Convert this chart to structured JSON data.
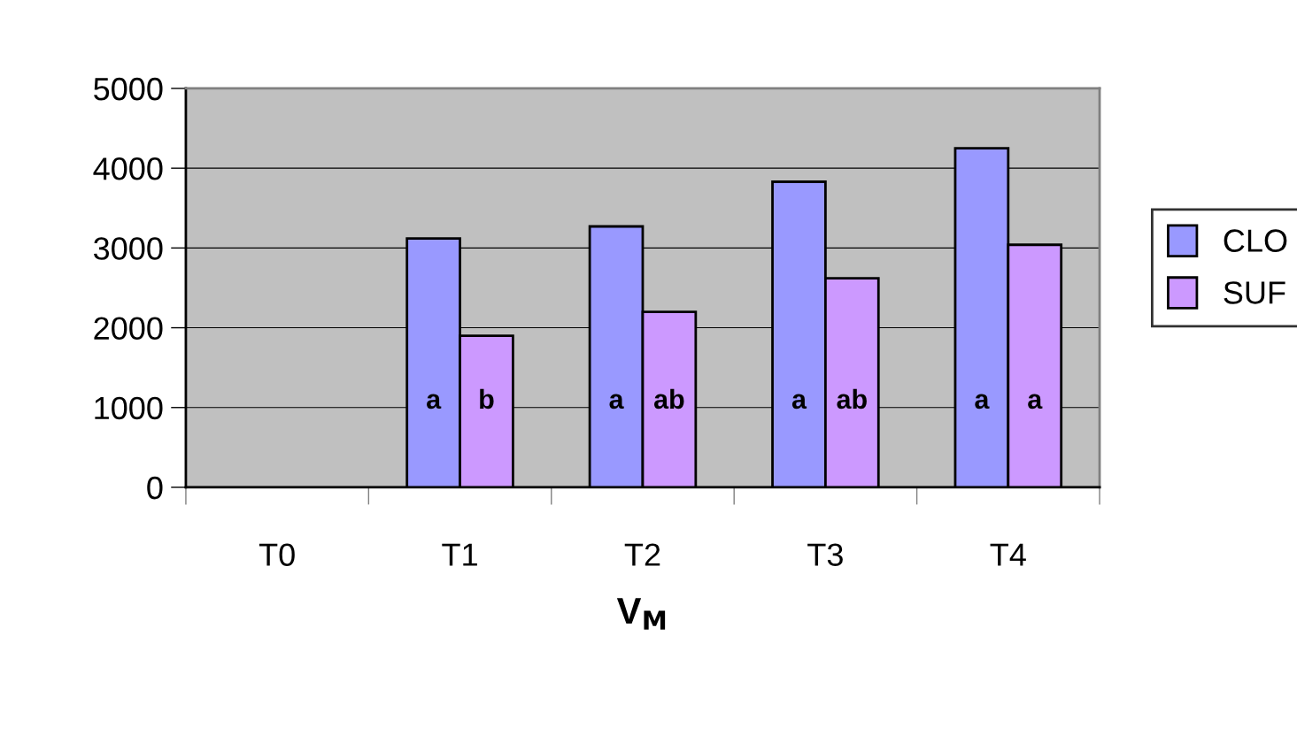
{
  "chart_data": {
    "type": "bar",
    "xlabel": "V$_{M}$",
    "categories": [
      "T0",
      "T1",
      "T2",
      "T3",
      "T4"
    ],
    "series": [
      {
        "name": "CLO",
        "color": "#9999ff",
        "values": [
          null,
          3120,
          3270,
          3830,
          4250
        ],
        "value_labels": [
          null,
          "a",
          "a",
          "a",
          "a"
        ]
      },
      {
        "name": "SUF",
        "color": "#cc99ff",
        "values": [
          null,
          1900,
          2200,
          2620,
          3040
        ],
        "value_labels": [
          null,
          "b",
          "ab",
          "ab",
          "a"
        ]
      }
    ],
    "ylim": [
      0,
      5000
    ],
    "yticks": [
      0,
      1000,
      2000,
      3000,
      4000,
      5000
    ],
    "grid": "y",
    "legend": "right"
  }
}
